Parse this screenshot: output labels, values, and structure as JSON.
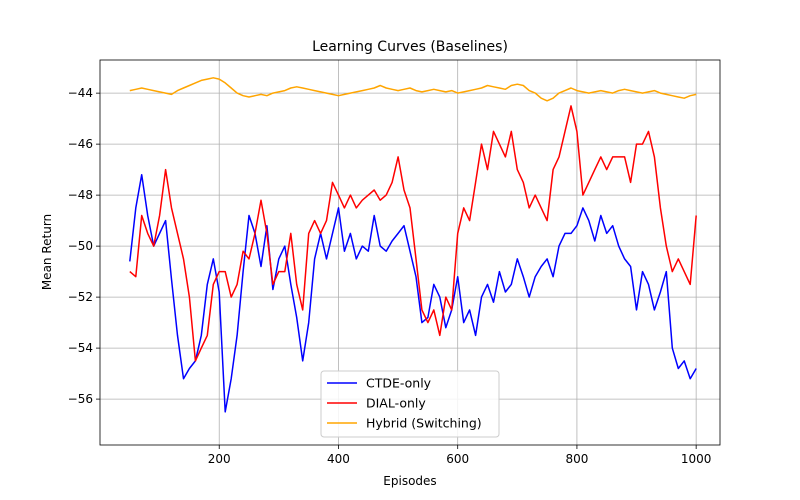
{
  "chart_data": {
    "type": "line",
    "title": "Learning Curves (Baselines)",
    "xlabel": "Episodes",
    "ylabel": "Mean Return",
    "xlim": [
      0,
      1040
    ],
    "ylim": [
      -57.8,
      -42.7
    ],
    "xticks": [
      200,
      400,
      600,
      800,
      1000
    ],
    "xtick_labels": [
      "200",
      "400",
      "600",
      "800",
      "1000"
    ],
    "yticks": [
      -56,
      -54,
      -52,
      -50,
      -48,
      -46,
      -44
    ],
    "ytick_labels": [
      "−56",
      "−54",
      "−52",
      "−50",
      "−48",
      "−46",
      "−44"
    ],
    "grid": true,
    "legend_position": "lower-center",
    "series": [
      {
        "name": "CTDE-only",
        "color": "#0000ff",
        "x": [
          50,
          60,
          70,
          80,
          90,
          100,
          110,
          120,
          130,
          140,
          150,
          160,
          170,
          180,
          190,
          200,
          210,
          220,
          230,
          240,
          250,
          260,
          270,
          280,
          290,
          300,
          310,
          320,
          330,
          340,
          350,
          360,
          370,
          380,
          390,
          400,
          410,
          420,
          430,
          440,
          450,
          460,
          470,
          480,
          490,
          500,
          510,
          520,
          530,
          540,
          550,
          560,
          570,
          580,
          590,
          600,
          610,
          620,
          630,
          640,
          650,
          660,
          670,
          680,
          690,
          700,
          710,
          720,
          730,
          740,
          750,
          760,
          770,
          780,
          790,
          800,
          810,
          820,
          830,
          840,
          850,
          860,
          870,
          880,
          890,
          900,
          910,
          920,
          930,
          940,
          950,
          960,
          970,
          980,
          990,
          1000
        ],
        "values": [
          -50.6,
          -48.5,
          -47.2,
          -48.8,
          -50.0,
          -49.5,
          -49.0,
          -51.3,
          -53.5,
          -55.2,
          -54.8,
          -54.5,
          -53.5,
          -51.5,
          -50.5,
          -51.8,
          -56.5,
          -55.2,
          -53.5,
          -51.0,
          -48.8,
          -49.5,
          -50.8,
          -49.2,
          -51.7,
          -50.5,
          -50.0,
          -51.5,
          -52.8,
          -54.5,
          -53.0,
          -50.5,
          -49.5,
          -50.5,
          -49.5,
          -48.5,
          -50.2,
          -49.5,
          -50.5,
          -50.0,
          -50.2,
          -48.8,
          -50.0,
          -50.2,
          -49.8,
          -49.5,
          -49.2,
          -50.2,
          -51.2,
          -53.0,
          -52.8,
          -51.5,
          -52.0,
          -53.2,
          -52.5,
          -51.2,
          -53.0,
          -52.5,
          -53.5,
          -52.0,
          -51.5,
          -52.2,
          -51.0,
          -51.8,
          -51.5,
          -50.5,
          -51.2,
          -52.0,
          -51.2,
          -50.8,
          -50.5,
          -51.2,
          -50.0,
          -49.5,
          -49.5,
          -49.2,
          -48.5,
          -49.0,
          -49.8,
          -48.8,
          -49.5,
          -49.2,
          -50.0,
          -50.5,
          -50.8,
          -52.5,
          -51.0,
          -51.5,
          -52.5,
          -51.8,
          -51.0,
          -54.0,
          -54.8,
          -54.5,
          -55.2,
          -54.8
        ]
      },
      {
        "name": "DIAL-only",
        "color": "#ff0000",
        "x": [
          50,
          60,
          70,
          80,
          90,
          100,
          110,
          120,
          130,
          140,
          150,
          160,
          170,
          180,
          190,
          200,
          210,
          220,
          230,
          240,
          250,
          260,
          270,
          280,
          290,
          300,
          310,
          320,
          330,
          340,
          350,
          360,
          370,
          380,
          390,
          400,
          410,
          420,
          430,
          440,
          450,
          460,
          470,
          480,
          490,
          500,
          510,
          520,
          530,
          540,
          550,
          560,
          570,
          580,
          590,
          600,
          610,
          620,
          630,
          640,
          650,
          660,
          670,
          680,
          690,
          700,
          710,
          720,
          730,
          740,
          750,
          760,
          770,
          780,
          790,
          800,
          810,
          820,
          830,
          840,
          850,
          860,
          870,
          880,
          890,
          900,
          910,
          920,
          930,
          940,
          950,
          960,
          970,
          980,
          990,
          1000
        ],
        "values": [
          -51.0,
          -51.2,
          -48.8,
          -49.5,
          -50.0,
          -48.8,
          -47.0,
          -48.5,
          -49.5,
          -50.5,
          -52.0,
          -54.5,
          -54.0,
          -53.5,
          -51.5,
          -51.0,
          -51.0,
          -52.0,
          -51.5,
          -50.2,
          -50.5,
          -49.5,
          -48.2,
          -49.5,
          -51.5,
          -51.0,
          -51.0,
          -49.5,
          -51.5,
          -52.5,
          -49.5,
          -49.0,
          -49.5,
          -49.0,
          -47.5,
          -48.0,
          -48.5,
          -48.0,
          -48.5,
          -48.2,
          -48.0,
          -47.8,
          -48.2,
          -48.0,
          -47.5,
          -46.5,
          -47.8,
          -48.5,
          -50.5,
          -52.5,
          -53.0,
          -52.5,
          -53.5,
          -52.0,
          -52.5,
          -49.5,
          -48.5,
          -49.0,
          -47.5,
          -46.0,
          -47.0,
          -45.5,
          -46.0,
          -46.5,
          -45.5,
          -47.0,
          -47.5,
          -48.5,
          -48.0,
          -48.5,
          -49.0,
          -47.0,
          -46.5,
          -45.5,
          -44.5,
          -45.5,
          -48.0,
          -47.5,
          -47.0,
          -46.5,
          -47.0,
          -46.5,
          -46.5,
          -46.5,
          -47.5,
          -46.0,
          -46.0,
          -45.5,
          -46.5,
          -48.5,
          -50.0,
          -51.0,
          -50.5,
          -51.0,
          -51.5,
          -48.8
        ]
      },
      {
        "name": "Hybrid (Switching)",
        "color": "#ffa500",
        "x": [
          50,
          60,
          70,
          80,
          90,
          100,
          110,
          120,
          130,
          140,
          150,
          160,
          170,
          180,
          190,
          200,
          210,
          220,
          230,
          240,
          250,
          260,
          270,
          280,
          290,
          300,
          310,
          320,
          330,
          340,
          350,
          360,
          370,
          380,
          390,
          400,
          410,
          420,
          430,
          440,
          450,
          460,
          470,
          480,
          490,
          500,
          510,
          520,
          530,
          540,
          550,
          560,
          570,
          580,
          590,
          600,
          610,
          620,
          630,
          640,
          650,
          660,
          670,
          680,
          690,
          700,
          710,
          720,
          730,
          740,
          750,
          760,
          770,
          780,
          790,
          800,
          810,
          820,
          830,
          840,
          850,
          860,
          870,
          880,
          890,
          900,
          910,
          920,
          930,
          940,
          950,
          960,
          970,
          980,
          990,
          1000
        ],
        "values": [
          -43.9,
          -43.85,
          -43.8,
          -43.85,
          -43.9,
          -43.95,
          -44.0,
          -44.05,
          -43.9,
          -43.8,
          -43.7,
          -43.6,
          -43.5,
          -43.45,
          -43.4,
          -43.45,
          -43.6,
          -43.8,
          -44.0,
          -44.1,
          -44.15,
          -44.1,
          -44.05,
          -44.1,
          -44.0,
          -43.95,
          -43.9,
          -43.8,
          -43.75,
          -43.8,
          -43.85,
          -43.9,
          -43.95,
          -44.0,
          -44.05,
          -44.1,
          -44.05,
          -44.0,
          -43.95,
          -43.9,
          -43.85,
          -43.8,
          -43.7,
          -43.8,
          -43.85,
          -43.9,
          -43.85,
          -43.8,
          -43.9,
          -43.95,
          -43.9,
          -43.85,
          -43.9,
          -43.95,
          -43.9,
          -44.0,
          -43.95,
          -43.9,
          -43.85,
          -43.8,
          -43.7,
          -43.75,
          -43.8,
          -43.85,
          -43.7,
          -43.65,
          -43.7,
          -43.9,
          -44.0,
          -44.2,
          -44.3,
          -44.2,
          -44.0,
          -43.9,
          -43.8,
          -43.9,
          -43.95,
          -44.0,
          -43.95,
          -43.9,
          -43.95,
          -44.0,
          -43.9,
          -43.85,
          -43.9,
          -43.95,
          -44.0,
          -43.95,
          -43.9,
          -44.0,
          -44.05,
          -44.1,
          -44.15,
          -44.2,
          -44.1,
          -44.05
        ]
      }
    ]
  }
}
